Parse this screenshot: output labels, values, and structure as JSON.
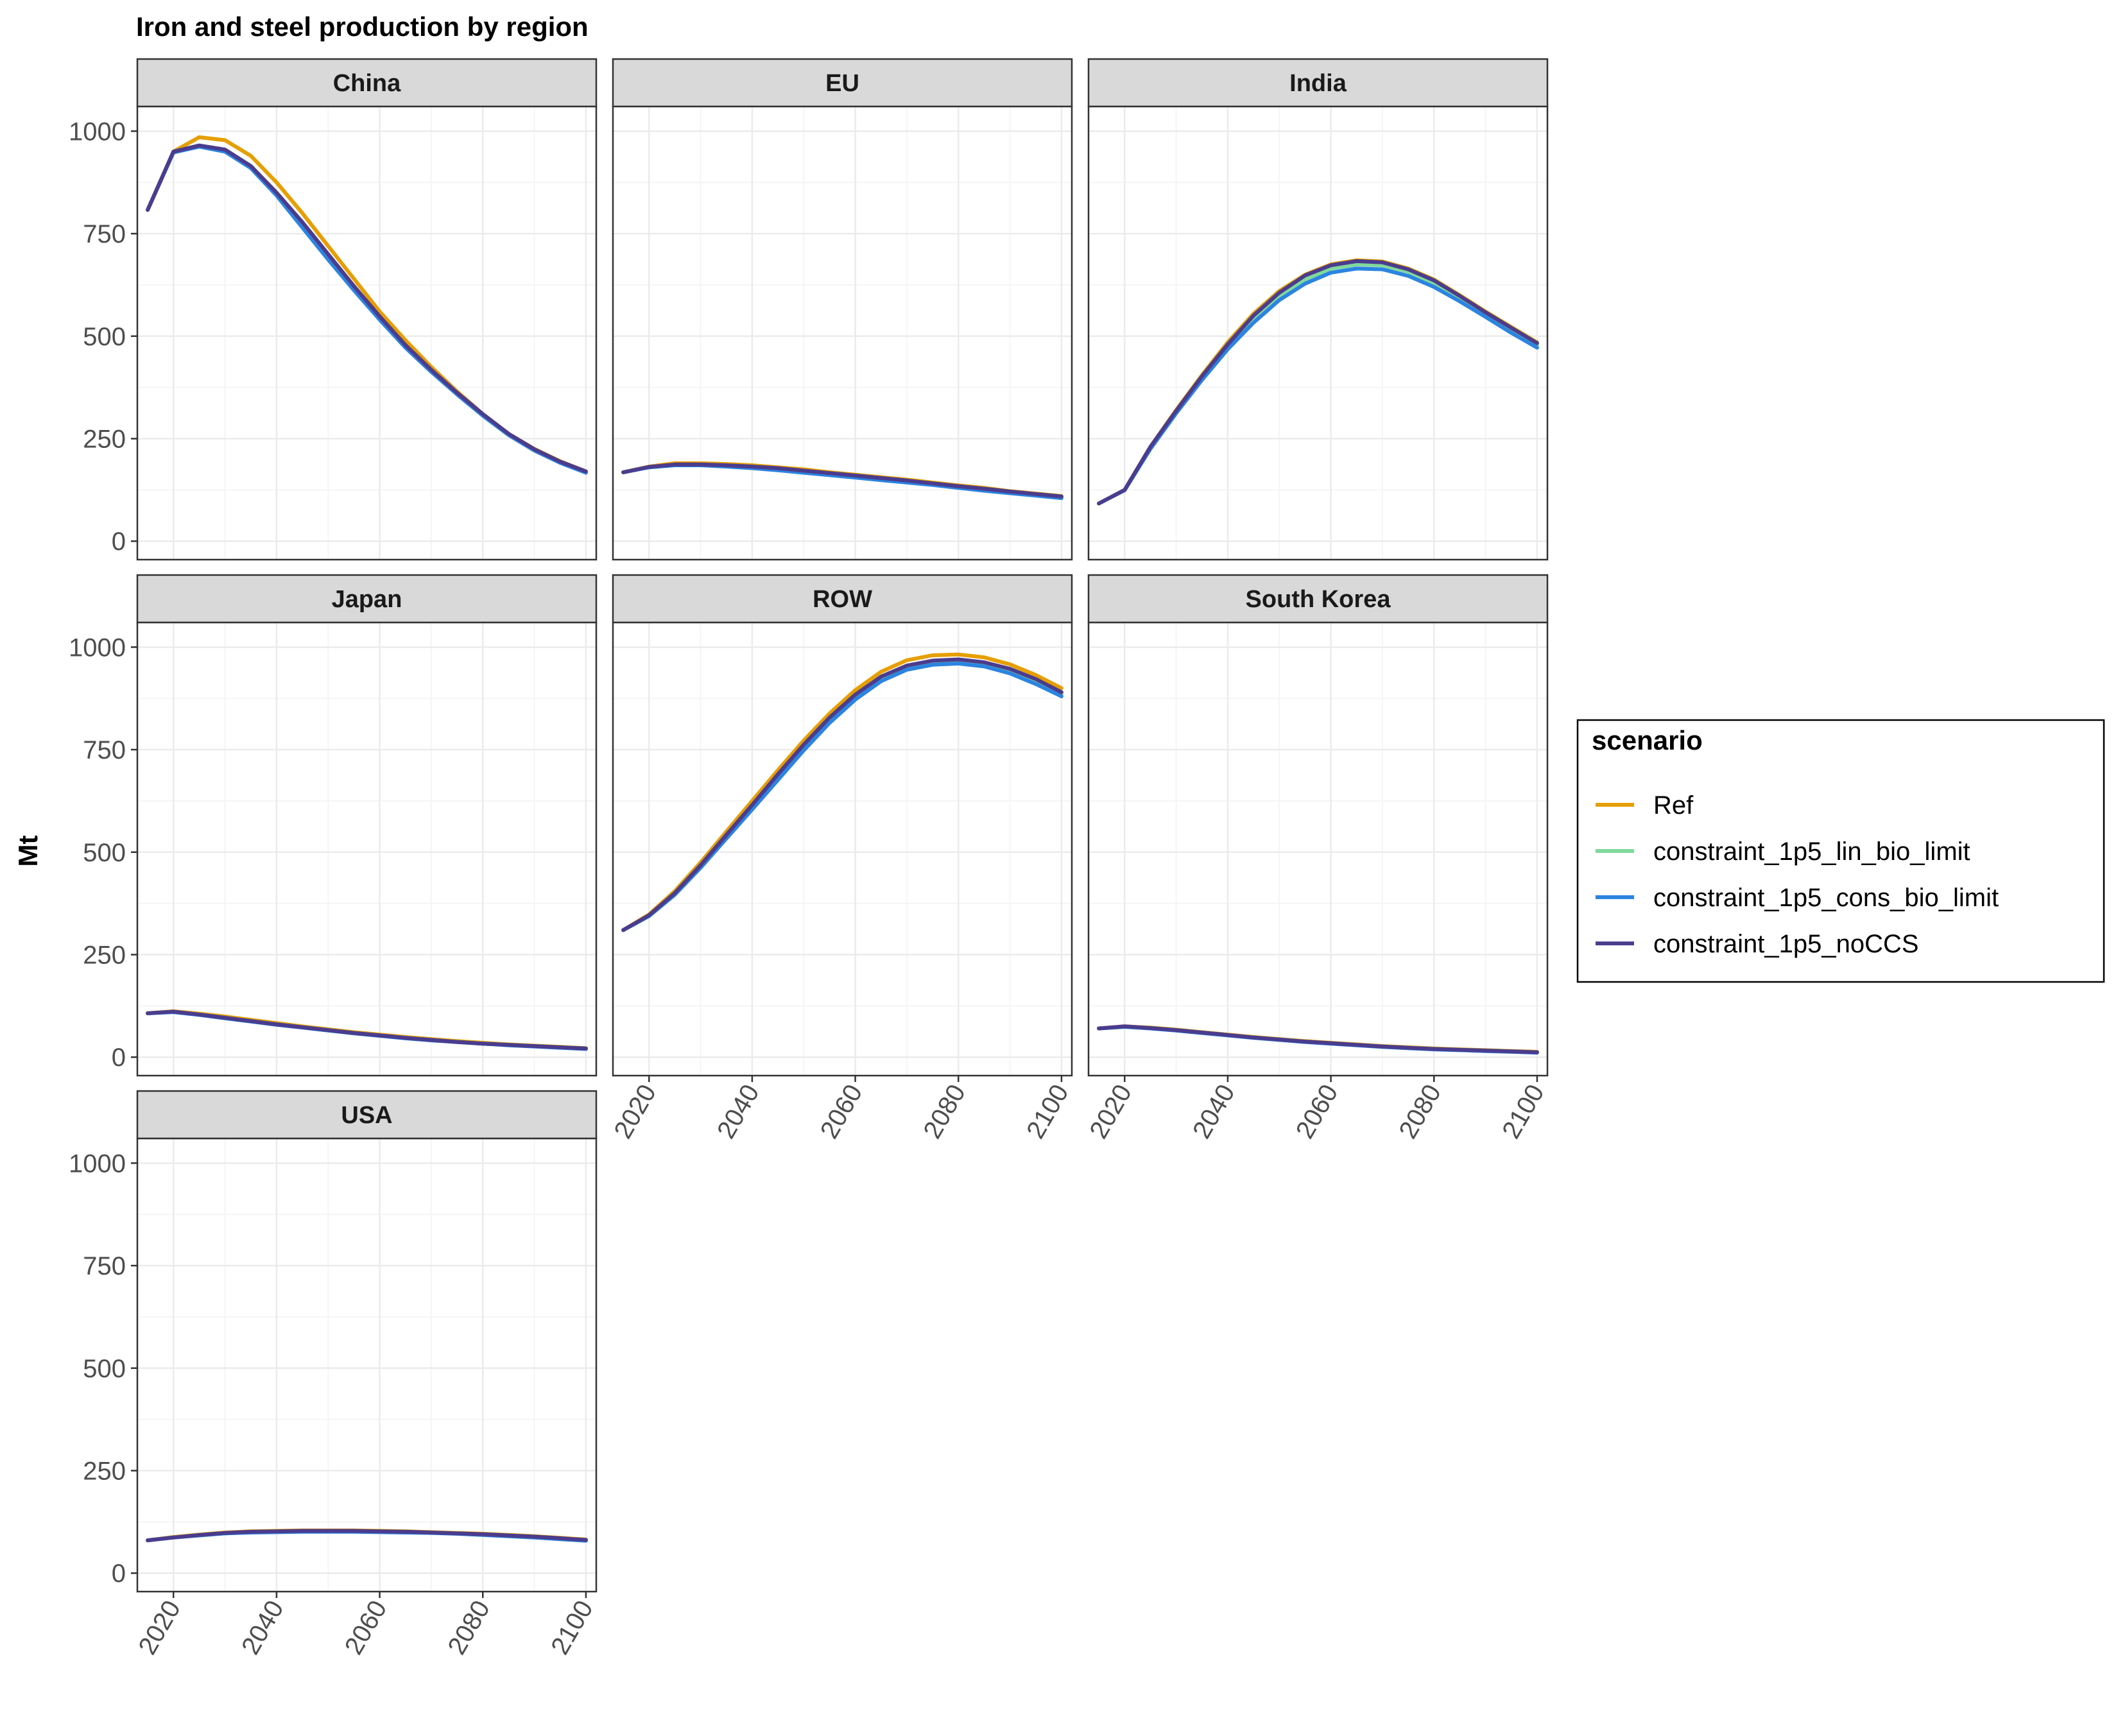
{
  "title": "Iron and steel production by region",
  "ylabel": "Mt",
  "legend": {
    "title": "scenario",
    "position": "right",
    "entries": [
      {
        "name": "Ref",
        "color": "#E69F00"
      },
      {
        "name": "constraint_1p5_lin_bio_limit",
        "color": "#7FD99B"
      },
      {
        "name": "constraint_1p5_cons_bio_limit",
        "color": "#2B84E0"
      },
      {
        "name": "constraint_1p5_noCCS",
        "color": "#4B3C8E"
      }
    ]
  },
  "colors": {
    "panel_border": "#333333",
    "strip_fill": "#D9D9D9",
    "grid_major": "#EBEBEB",
    "grid_minor": "#F5F5F5"
  },
  "chart_data": {
    "type": "line",
    "facet_layout": "3 columns x 3 rows, shared axes",
    "x": [
      2015,
      2020,
      2025,
      2030,
      2035,
      2040,
      2045,
      2050,
      2055,
      2060,
      2065,
      2070,
      2075,
      2080,
      2085,
      2090,
      2095,
      2100
    ],
    "xlim": [
      2013,
      2102
    ],
    "xticks": [
      2020,
      2040,
      2060,
      2080,
      2100
    ],
    "ylim": [
      -45,
      1060
    ],
    "yticks": [
      0,
      250,
      500,
      750,
      1000
    ],
    "grid": true,
    "panels": [
      {
        "region": "China",
        "series": [
          {
            "name": "Ref",
            "values": [
              808,
              950,
              985,
              978,
              940,
              875,
              800,
              720,
              640,
              560,
              490,
              425,
              365,
              310,
              262,
              225,
              195,
              170
            ]
          },
          {
            "name": "constraint_1p5_lin_bio_limit",
            "values": [
              808,
              950,
              965,
              955,
              915,
              850,
              775,
              695,
              620,
              545,
              475,
              415,
              360,
              308,
              260,
              222,
              192,
              168
            ]
          },
          {
            "name": "constraint_1p5_cons_bio_limit",
            "values": [
              808,
              948,
              962,
              950,
              910,
              843,
              765,
              687,
              612,
              540,
              472,
              413,
              358,
              306,
              259,
              221,
              191,
              167
            ]
          },
          {
            "name": "constraint_1p5_noCCS",
            "values": [
              808,
              950,
              965,
              955,
              915,
              850,
              778,
              700,
              622,
              548,
              478,
              418,
              362,
              310,
              262,
              224,
              194,
              170
            ]
          }
        ]
      },
      {
        "region": "EU",
        "series": [
          {
            "name": "Ref",
            "values": [
              168,
              182,
              190,
              190,
              188,
              185,
              180,
              175,
              168,
              162,
              156,
              150,
              143,
              136,
              130,
              122,
              116,
              110
            ]
          },
          {
            "name": "constraint_1p5_lin_bio_limit",
            "values": [
              168,
              181,
              186,
              186,
              184,
              180,
              175,
              170,
              164,
              158,
              152,
              146,
              140,
              133,
              126,
              119,
              113,
              107
            ]
          },
          {
            "name": "constraint_1p5_cons_bio_limit",
            "values": [
              168,
              180,
              185,
              185,
              182,
              178,
              173,
              167,
              161,
              155,
              149,
              143,
              137,
              130,
              123,
              117,
              111,
              105
            ]
          },
          {
            "name": "constraint_1p5_noCCS",
            "values": [
              168,
              181,
              187,
              187,
              185,
              182,
              178,
              172,
              166,
              160,
              154,
              148,
              141,
              134,
              128,
              121,
              115,
              109
            ]
          }
        ]
      },
      {
        "region": "India",
        "series": [
          {
            "name": "Ref",
            "values": [
              92,
              125,
              230,
              320,
              405,
              485,
              555,
              610,
              650,
              675,
              685,
              682,
              665,
              638,
              600,
              560,
              522,
              485
            ]
          },
          {
            "name": "constraint_1p5_lin_bio_limit",
            "values": [
              92,
              125,
              228,
              315,
              398,
              475,
              542,
              598,
              638,
              665,
              675,
              673,
              657,
              630,
              594,
              555,
              515,
              478
            ]
          },
          {
            "name": "constraint_1p5_cons_bio_limit",
            "values": [
              92,
              124,
              225,
              312,
              393,
              468,
              533,
              588,
              628,
              655,
              665,
              663,
              647,
              620,
              585,
              547,
              508,
              472
            ]
          },
          {
            "name": "constraint_1p5_noCCS",
            "values": [
              92,
              125,
              230,
              318,
              402,
              480,
              550,
              606,
              648,
              673,
              683,
              680,
              663,
              636,
              598,
              558,
              520,
              483
            ]
          }
        ]
      },
      {
        "region": "Japan",
        "series": [
          {
            "name": "Ref",
            "values": [
              107,
              112,
              106,
              99,
              91,
              83,
              75,
              68,
              61,
              55,
              49,
              44,
              39,
              35,
              31,
              28,
              25,
              22
            ]
          },
          {
            "name": "constraint_1p5_lin_bio_limit",
            "values": [
              107,
              111,
              104,
              96,
              88,
              80,
              73,
              66,
              59,
              53,
              47,
              42,
              37,
              33,
              30,
              27,
              24,
              21
            ]
          },
          {
            "name": "constraint_1p5_cons_bio_limit",
            "values": [
              107,
              110,
              103,
              95,
              87,
              79,
              72,
              65,
              58,
              52,
              46,
              41,
              37,
              33,
              29,
              26,
              23,
              20
            ]
          },
          {
            "name": "constraint_1p5_noCCS",
            "values": [
              107,
              111,
              104,
              96,
              88,
              80,
              73,
              66,
              59,
              53,
              47,
              42,
              37,
              33,
              30,
              27,
              24,
              21
            ]
          }
        ]
      },
      {
        "region": "ROW",
        "series": [
          {
            "name": "Ref",
            "values": [
              310,
              348,
              405,
              475,
              550,
              625,
              700,
              772,
              838,
              895,
              940,
              968,
              980,
              982,
              975,
              958,
              932,
              900
            ]
          },
          {
            "name": "constraint_1p5_lin_bio_limit",
            "values": [
              310,
              345,
              398,
              465,
              538,
              610,
              683,
              755,
              822,
              878,
              922,
              950,
              962,
              965,
              958,
              942,
              916,
              885
            ]
          },
          {
            "name": "constraint_1p5_cons_bio_limit",
            "values": [
              310,
              344,
              396,
              462,
              533,
              604,
              676,
              748,
              815,
              872,
              917,
              945,
              957,
              960,
              953,
              936,
              910,
              880
            ]
          },
          {
            "name": "constraint_1p5_noCCS",
            "values": [
              310,
              346,
              400,
              468,
              542,
              615,
              690,
              762,
              828,
              884,
              928,
              955,
              967,
              970,
              963,
              947,
              922,
              890
            ]
          }
        ]
      },
      {
        "region": "South Korea",
        "series": [
          {
            "name": "Ref",
            "values": [
              70,
              75,
              72,
              67,
              61,
              55,
              49,
              44,
              39,
              35,
              31,
              27,
              24,
              21,
              19,
              17,
              15,
              13
            ]
          },
          {
            "name": "constraint_1p5_lin_bio_limit",
            "values": [
              70,
              74,
              71,
              66,
              60,
              54,
              48,
              43,
              38,
              34,
              30,
              26,
              23,
              20,
              18,
              16,
              14,
              12
            ]
          },
          {
            "name": "constraint_1p5_cons_bio_limit",
            "values": [
              70,
              74,
              70,
              65,
              59,
              53,
              47,
              42,
              37,
              33,
              29,
              25,
              22,
              19,
              17,
              15,
              13,
              11
            ]
          },
          {
            "name": "constraint_1p5_noCCS",
            "values": [
              70,
              75,
              71,
              66,
              60,
              54,
              48,
              43,
              38,
              34,
              30,
              26,
              23,
              20,
              18,
              16,
              14,
              12
            ]
          }
        ]
      },
      {
        "region": "USA",
        "series": [
          {
            "name": "Ref",
            "values": [
              80,
              88,
              94,
              99,
              102,
              103,
              104,
              104,
              104,
              103,
              102,
              100,
              98,
              96,
              93,
              90,
              86,
              82
            ]
          },
          {
            "name": "constraint_1p5_lin_bio_limit",
            "values": [
              80,
              87,
              93,
              97,
              100,
              101,
              102,
              102,
              102,
              101,
              100,
              99,
              97,
              94,
              91,
              88,
              84,
              80
            ]
          },
          {
            "name": "constraint_1p5_cons_bio_limit",
            "values": [
              80,
              87,
              92,
              97,
              99,
              100,
              101,
              101,
              101,
              100,
              99,
              98,
              96,
              93,
              90,
              87,
              83,
              79
            ]
          },
          {
            "name": "constraint_1p5_noCCS",
            "values": [
              80,
              87,
              93,
              98,
              101,
              102,
              103,
              103,
              103,
              102,
              101,
              99,
              97,
              95,
              92,
              89,
              85,
              81
            ]
          }
        ]
      }
    ]
  }
}
